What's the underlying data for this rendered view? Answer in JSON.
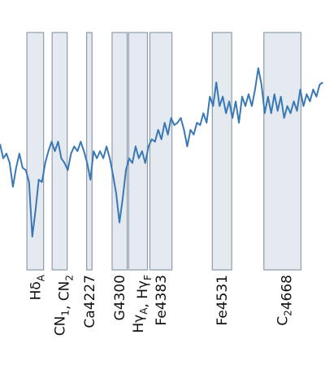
{
  "chart_data": {
    "type": "line",
    "color": "#3a78b5",
    "xlim": [
      4021,
      4776
    ],
    "ylim": [
      0,
      100
    ],
    "x": [
      4021,
      4028.5,
      4036,
      4043.5,
      4051,
      4058.5,
      4066,
      4073.5,
      4081,
      4088.5,
      4096,
      4103.5,
      4111,
      4118.5,
      4126,
      4133.5,
      4141,
      4148.5,
      4156,
      4163.5,
      4171,
      4178.5,
      4186,
      4193.5,
      4201,
      4208.5,
      4216,
      4223.5,
      4231,
      4238.5,
      4246,
      4253.5,
      4261,
      4268.5,
      4276,
      4283.5,
      4291,
      4298.5,
      4306,
      4313.5,
      4321,
      4328.5,
      4336,
      4343.5,
      4351,
      4358.5,
      4366,
      4373.5,
      4381,
      4388.5,
      4396,
      4403.5,
      4411,
      4418.5,
      4426,
      4433.5,
      4441,
      4448.5,
      4456,
      4463.5,
      4471,
      4478.5,
      4486,
      4493.5,
      4501,
      4508.5,
      4516,
      4523.5,
      4531,
      4538.5,
      4546,
      4553.5,
      4561,
      4568.5,
      4576,
      4583.5,
      4591,
      4598.5,
      4606,
      4613.5,
      4621,
      4628.5,
      4636,
      4643.5,
      4651,
      4658.5,
      4666,
      4673.5,
      4681,
      4688.5,
      4696,
      4703.5,
      4711,
      4718.5,
      4726,
      4733.5,
      4741,
      4748.5,
      4756,
      4763.5,
      4771
    ],
    "values": [
      53,
      47,
      49,
      45,
      35,
      43,
      49,
      43,
      42,
      37,
      14,
      25,
      38,
      37,
      45,
      50,
      54,
      50,
      54,
      47,
      45,
      42,
      49,
      52,
      50,
      54,
      50,
      45,
      38,
      50,
      47,
      50,
      47,
      52,
      47,
      40,
      32,
      20,
      30,
      42,
      47,
      45,
      52,
      47,
      50,
      45,
      52,
      55,
      54,
      59,
      55,
      62,
      57,
      64,
      61,
      62,
      64,
      59,
      52,
      59,
      57,
      62,
      61,
      66,
      62,
      73,
      69,
      79,
      69,
      73,
      66,
      71,
      64,
      71,
      62,
      73,
      69,
      74,
      69,
      76,
      85,
      78,
      66,
      73,
      66,
      74,
      67,
      73,
      64,
      69,
      66,
      71,
      67,
      76,
      69,
      74,
      71,
      76,
      73,
      78,
      79
    ],
    "bands": [
      {
        "range": [
          4083.5,
          4122.25
        ],
        "label": [
          {
            "text": "Hδ",
            "sub": "A"
          }
        ]
      },
      {
        "range": [
          4142.1,
          4177.1
        ],
        "label": [
          {
            "text": "CN",
            "sub": "1"
          },
          {
            "text": ", CN",
            "sub": "2"
          }
        ]
      },
      {
        "range": [
          4222.25,
          4234.75
        ],
        "label": [
          {
            "text": "Ca4227"
          }
        ]
      },
      {
        "range": [
          4281.4,
          4316.4
        ],
        "label": [
          {
            "text": "G4300"
          }
        ]
      },
      {
        "range": [
          4319.75,
          4363.5
        ],
        "label": [
          {
            "text": "Hγ",
            "sub": "A"
          },
          {
            "text": ", Hγ",
            "sub": "F"
          }
        ]
      },
      {
        "range": [
          4369.1,
          4420.4
        ],
        "label": [
          {
            "text": "Fe4383"
          }
        ]
      },
      {
        "range": [
          4514.25,
          4559.25
        ],
        "label": [
          {
            "text": "Fe4531"
          }
        ]
      },
      {
        "range": [
          4634,
          4720.25
        ],
        "label": [
          {
            "text": "C",
            "sub": "2"
          },
          {
            "text": "4668"
          }
        ]
      }
    ]
  }
}
